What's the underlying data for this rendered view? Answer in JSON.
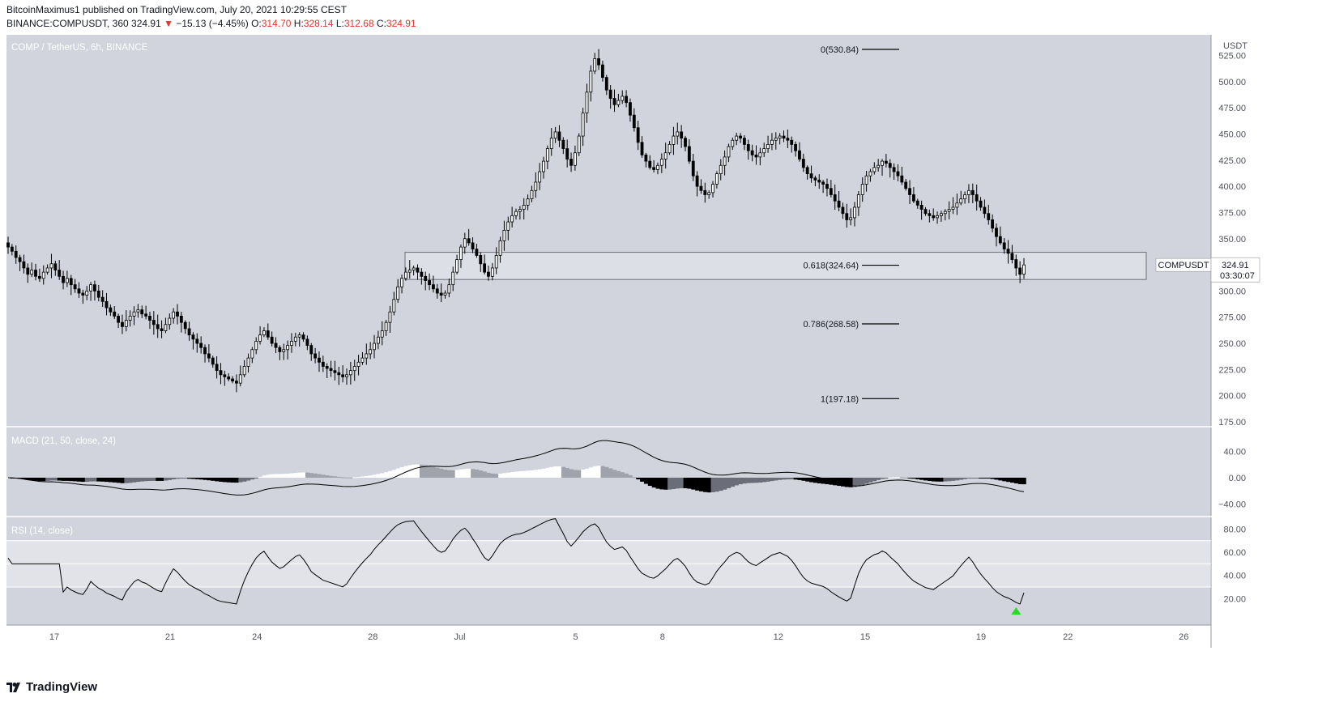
{
  "header": {
    "publisher_line": "BitcoinMaximus1 published on TradingView.com, July 20, 2021 10:29:55 CEST",
    "symbol_line": "BINANCE:COMPUSDT, 360",
    "last_price": "324.91",
    "change_arrow": "▼",
    "change": "−15.13 (−4.45%)",
    "o_label": "O:",
    "o_value": "314.70",
    "h_label": "H:",
    "h_value": "328.14",
    "l_label": "L:",
    "l_value": "312.68",
    "c_label": "C:",
    "c_value": "324.91"
  },
  "footer": {
    "brand": "TradingView"
  },
  "colors": {
    "pane_bg": "#d1d4dc",
    "candle_up": "#ffffff",
    "candle_down": "#000000",
    "axis_text": "#50535e",
    "price_down": "#e2352b",
    "rsi_signal": "#22dd22"
  },
  "chart_data": [
    {
      "type": "candlestick",
      "title": "COMP / TetherUS, 6h, BINANCE",
      "price_axis_label": "USDT",
      "ylim": [
        175,
        537
      ],
      "yticks": [
        "525.00",
        "500.00",
        "475.00",
        "450.00",
        "425.00",
        "400.00",
        "375.00",
        "350.00",
        "325.00",
        "300.00",
        "275.00",
        "250.00",
        "225.00",
        "200.00",
        "175.00"
      ],
      "x_ticks": [
        {
          "day": 17,
          "label": "17"
        },
        {
          "day": 21,
          "label": "21"
        },
        {
          "day": 24,
          "label": "24"
        },
        {
          "day": 28,
          "label": "28"
        },
        {
          "day": 31,
          "label": "Jul"
        },
        {
          "day": 35,
          "label": "5"
        },
        {
          "day": 38,
          "label": "8"
        },
        {
          "day": 42,
          "label": "12"
        },
        {
          "day": 45,
          "label": "15"
        },
        {
          "day": 49,
          "label": "19"
        },
        {
          "day": 52,
          "label": "22"
        },
        {
          "day": 56,
          "label": "26"
        }
      ],
      "x_axis_note": "x = days since Jun 1 2021 (31 = Jul 1)",
      "closes": [
        342,
        338,
        332,
        328,
        322,
        316,
        320,
        314,
        312,
        318,
        322,
        326,
        320,
        314,
        308,
        312,
        306,
        302,
        298,
        296,
        300,
        306,
        300,
        294,
        290,
        284,
        280,
        276,
        270,
        266,
        272,
        276,
        280,
        282,
        278,
        276,
        272,
        268,
        264,
        262,
        268,
        274,
        280,
        276,
        270,
        264,
        258,
        254,
        250,
        246,
        240,
        236,
        230,
        224,
        220,
        218,
        216,
        214,
        212,
        220,
        228,
        236,
        244,
        252,
        258,
        262,
        256,
        250,
        246,
        242,
        244,
        248,
        252,
        256,
        258,
        254,
        248,
        240,
        236,
        232,
        228,
        226,
        224,
        222,
        220,
        218,
        220,
        224,
        228,
        232,
        236,
        240,
        244,
        250,
        256,
        262,
        270,
        280,
        292,
        304,
        312,
        318,
        320,
        322,
        318,
        314,
        310,
        306,
        302,
        298,
        296,
        298,
        306,
        318,
        330,
        342,
        350,
        346,
        340,
        334,
        326,
        318,
        314,
        322,
        334,
        348,
        358,
        366,
        372,
        376,
        378,
        382,
        388,
        396,
        404,
        414,
        424,
        436,
        446,
        452,
        444,
        436,
        426,
        420,
        432,
        448,
        470,
        490,
        510,
        522,
        516,
        504,
        492,
        484,
        478,
        482,
        486,
        480,
        468,
        456,
        442,
        430,
        424,
        418,
        416,
        420,
        426,
        432,
        440,
        448,
        452,
        446,
        438,
        424,
        410,
        400,
        396,
        392,
        394,
        402,
        412,
        420,
        428,
        438,
        444,
        448,
        446,
        440,
        434,
        430,
        428,
        432,
        436,
        440,
        444,
        446,
        448,
        446,
        444,
        440,
        434,
        426,
        418,
        412,
        408,
        406,
        404,
        402,
        398,
        392,
        386,
        380,
        374,
        368,
        370,
        380,
        392,
        402,
        410,
        414,
        418,
        420,
        424,
        422,
        418,
        414,
        410,
        404,
        398,
        392,
        386,
        382,
        378,
        374,
        372,
        370,
        372,
        374,
        376,
        378,
        380,
        384,
        388,
        392,
        396,
        392,
        386,
        380,
        374,
        368,
        360,
        352,
        346,
        340,
        336,
        330,
        322,
        316,
        324.91
      ],
      "closes_note": "one value per 6h candle, ending at last close",
      "fib_levels": [
        {
          "label": "0(530.84)",
          "value": 530.84
        },
        {
          "label": "0.618(324.64)",
          "value": 324.64
        },
        {
          "label": "0.786(268.58)",
          "value": 268.58
        },
        {
          "label": "1(197.18)",
          "value": 197.18
        }
      ],
      "support_zone": [
        311,
        337
      ],
      "last_price_tag": {
        "symbol": "COMPUSDT",
        "price": "324.91",
        "countdown": "03:30:07"
      }
    },
    {
      "type": "macd",
      "title": "MACD (21, 50, close, 24)",
      "ylim": [
        -52,
        68
      ],
      "yticks": [
        "40.00",
        "0.00",
        "−40.00"
      ]
    },
    {
      "type": "rsi",
      "title": "RSI (14, close)",
      "ylim": [
        0,
        88
      ],
      "yticks": [
        "80.00",
        "60.00",
        "40.00",
        "20.00"
      ],
      "band": [
        30,
        70
      ],
      "midline": 50
    }
  ]
}
